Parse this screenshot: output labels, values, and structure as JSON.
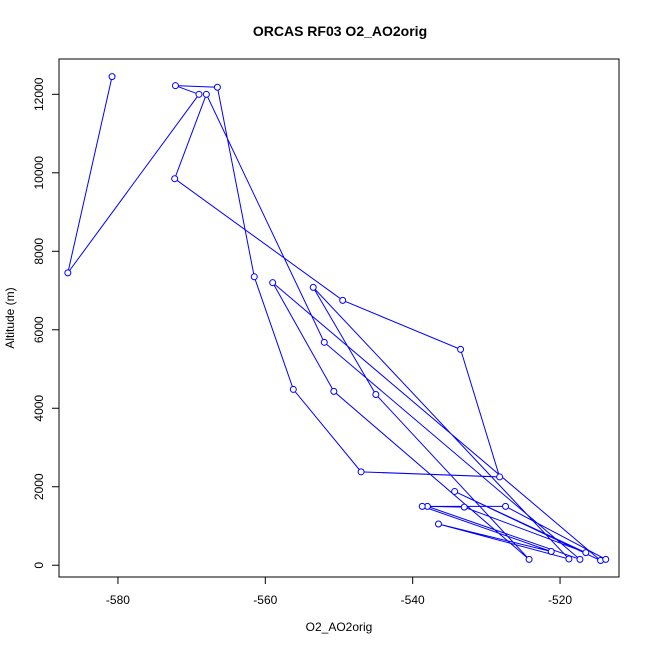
{
  "chart_data": {
    "type": "line",
    "title": "ORCAS RF03 O2_AO2orig",
    "xlabel": "O2_AO2orig",
    "ylabel": "Altitude (m)",
    "xlim": [
      -588,
      -512
    ],
    "ylim": [
      -300,
      12900
    ],
    "xticks": [
      -580,
      -560,
      -540,
      -520
    ],
    "yticks": [
      0,
      2000,
      4000,
      6000,
      8000,
      10000,
      12000
    ],
    "marker": "open-circle",
    "grid": false,
    "series": [
      {
        "color": "#0000ff",
        "points": [
          [
            -580.8,
            12450
          ],
          [
            -586.8,
            7450
          ],
          [
            -569.0,
            12000
          ],
          [
            -572.2,
            12220
          ],
          [
            -566.5,
            12180
          ],
          [
            -561.5,
            7350
          ],
          [
            -556.2,
            4480
          ],
          [
            -547.0,
            2380
          ],
          [
            -528.2,
            2250
          ],
          [
            -533.5,
            5500
          ],
          [
            -549.5,
            6750
          ],
          [
            -572.3,
            9850
          ],
          [
            -568.0,
            12000
          ],
          [
            -552.0,
            5680
          ],
          [
            -517.3,
            150
          ],
          [
            -538.0,
            1500
          ],
          [
            -533.0,
            1480
          ],
          [
            -516.5,
            320
          ],
          [
            -534.3,
            1880
          ],
          [
            -514.5,
            120
          ],
          [
            -559.0,
            7200
          ],
          [
            -550.7,
            4430
          ],
          [
            -524.2,
            150
          ],
          [
            -545.0,
            4350
          ],
          [
            -553.5,
            7080
          ],
          [
            -518.8,
            160
          ],
          [
            -536.5,
            1050
          ],
          [
            -521.2,
            350
          ],
          [
            -538.7,
            1500
          ],
          [
            -527.4,
            1500
          ],
          [
            -513.8,
            150
          ]
        ]
      }
    ]
  }
}
